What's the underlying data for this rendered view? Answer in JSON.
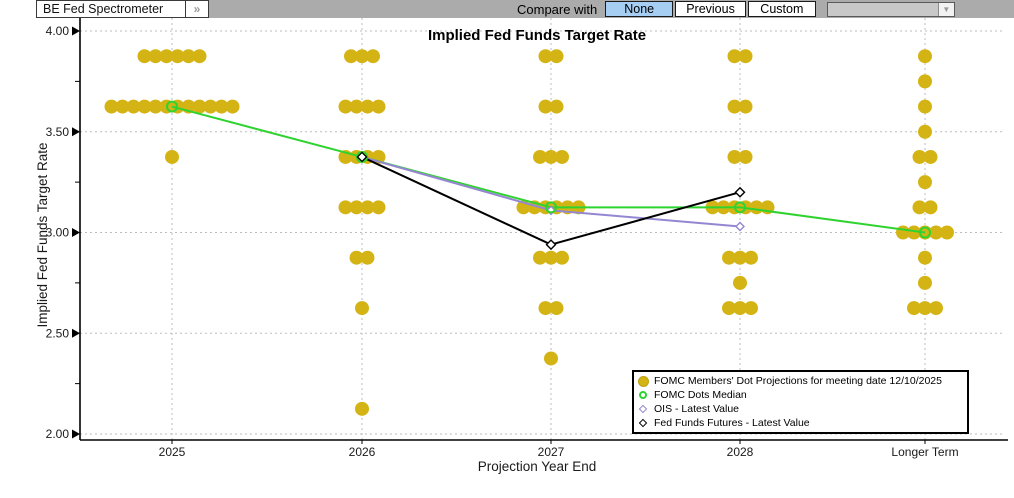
{
  "toolbar": {
    "app_selector": "BE Fed Spectrometer",
    "expand_button": "»",
    "compare_label": "Compare with",
    "compare_options": [
      "None",
      "Previous",
      "Custom"
    ],
    "compare_active": "None"
  },
  "legend": {
    "items": [
      {
        "marker": "filled-gold-circle",
        "label": "FOMC Members' Dot Projections for meeting date 12/10/2025"
      },
      {
        "marker": "open-green-circle",
        "label": "FOMC Dots Median"
      },
      {
        "marker": "open-purple-diamond",
        "label": "OIS - Latest Value"
      },
      {
        "marker": "open-black-diamond",
        "label": "Fed Funds Futures - Latest Value"
      }
    ]
  },
  "chart_data": {
    "type": "scatter",
    "title": "Implied Fed Funds Target Rate",
    "xlabel": "Projection Year End",
    "ylabel": "Implied Fed Funds Target Rate",
    "ylim": [
      2.0,
      4.0
    ],
    "grid": "dotted",
    "legend_position": "bottom-right",
    "categories": [
      "2025",
      "2026",
      "2027",
      "2028",
      "Longer Term"
    ],
    "y_ticks": [
      {
        "v": 4.0,
        "label": "4.00"
      },
      {
        "v": 3.5,
        "label": "3.50"
      },
      {
        "v": 3.0,
        "label": "3.00"
      },
      {
        "v": 2.5,
        "label": "2.50"
      },
      {
        "v": 2.0,
        "label": "2.00"
      }
    ],
    "y_minor_ticks": [
      3.75,
      3.25,
      2.75,
      2.25
    ],
    "colors": {
      "dots": "#d4b414",
      "median": "#2fd32f",
      "ois": "#9586d2",
      "futures": "#000000"
    },
    "dot_projections": [
      {
        "category": "2025",
        "dots": [
          {
            "v": 3.875,
            "n": 6
          },
          {
            "v": 3.625,
            "n": 12
          },
          {
            "v": 3.375,
            "n": 1
          }
        ]
      },
      {
        "category": "2026",
        "dots": [
          {
            "v": 3.875,
            "n": 3
          },
          {
            "v": 3.625,
            "n": 4
          },
          {
            "v": 3.375,
            "n": 4
          },
          {
            "v": 3.125,
            "n": 4
          },
          {
            "v": 2.875,
            "n": 2
          },
          {
            "v": 2.625,
            "n": 1
          },
          {
            "v": 2.125,
            "n": 1
          }
        ]
      },
      {
        "category": "2027",
        "dots": [
          {
            "v": 3.875,
            "n": 2
          },
          {
            "v": 3.625,
            "n": 2
          },
          {
            "v": 3.375,
            "n": 3
          },
          {
            "v": 3.125,
            "n": 6
          },
          {
            "v": 2.875,
            "n": 3
          },
          {
            "v": 2.625,
            "n": 2
          },
          {
            "v": 2.375,
            "n": 1
          }
        ]
      },
      {
        "category": "2028",
        "dots": [
          {
            "v": 3.875,
            "n": 2
          },
          {
            "v": 3.625,
            "n": 2
          },
          {
            "v": 3.375,
            "n": 2
          },
          {
            "v": 3.125,
            "n": 6
          },
          {
            "v": 2.875,
            "n": 3
          },
          {
            "v": 2.75,
            "n": 1
          },
          {
            "v": 2.625,
            "n": 3
          }
        ]
      },
      {
        "category": "Longer Term",
        "dots": [
          {
            "v": 3.875,
            "n": 1
          },
          {
            "v": 3.75,
            "n": 1
          },
          {
            "v": 3.625,
            "n": 1
          },
          {
            "v": 3.5,
            "n": 1
          },
          {
            "v": 3.375,
            "n": 2
          },
          {
            "v": 3.25,
            "n": 1
          },
          {
            "v": 3.125,
            "n": 2
          },
          {
            "v": 3.0,
            "n": 5
          },
          {
            "v": 2.875,
            "n": 1
          },
          {
            "v": 2.75,
            "n": 1
          },
          {
            "v": 2.625,
            "n": 3
          }
        ]
      }
    ],
    "series": [
      {
        "name": "FOMC Dots Median",
        "color": "#2fd32f",
        "marker": "open-circle",
        "x": [
          "2025",
          "2026",
          "2027",
          "2028",
          "Longer Term"
        ],
        "y": [
          3.625,
          3.375,
          3.125,
          3.125,
          3.0
        ]
      },
      {
        "name": "OIS - Latest Value",
        "color": "#9586d2",
        "marker": "open-diamond",
        "x": [
          "2026",
          "2027",
          "2028"
        ],
        "y": [
          3.375,
          3.11,
          3.03
        ]
      },
      {
        "name": "Fed Funds Futures - Latest Value",
        "color": "#000000",
        "marker": "open-diamond",
        "x": [
          "2026",
          "2027",
          "2028"
        ],
        "y": [
          3.375,
          2.94,
          3.2
        ]
      }
    ]
  }
}
